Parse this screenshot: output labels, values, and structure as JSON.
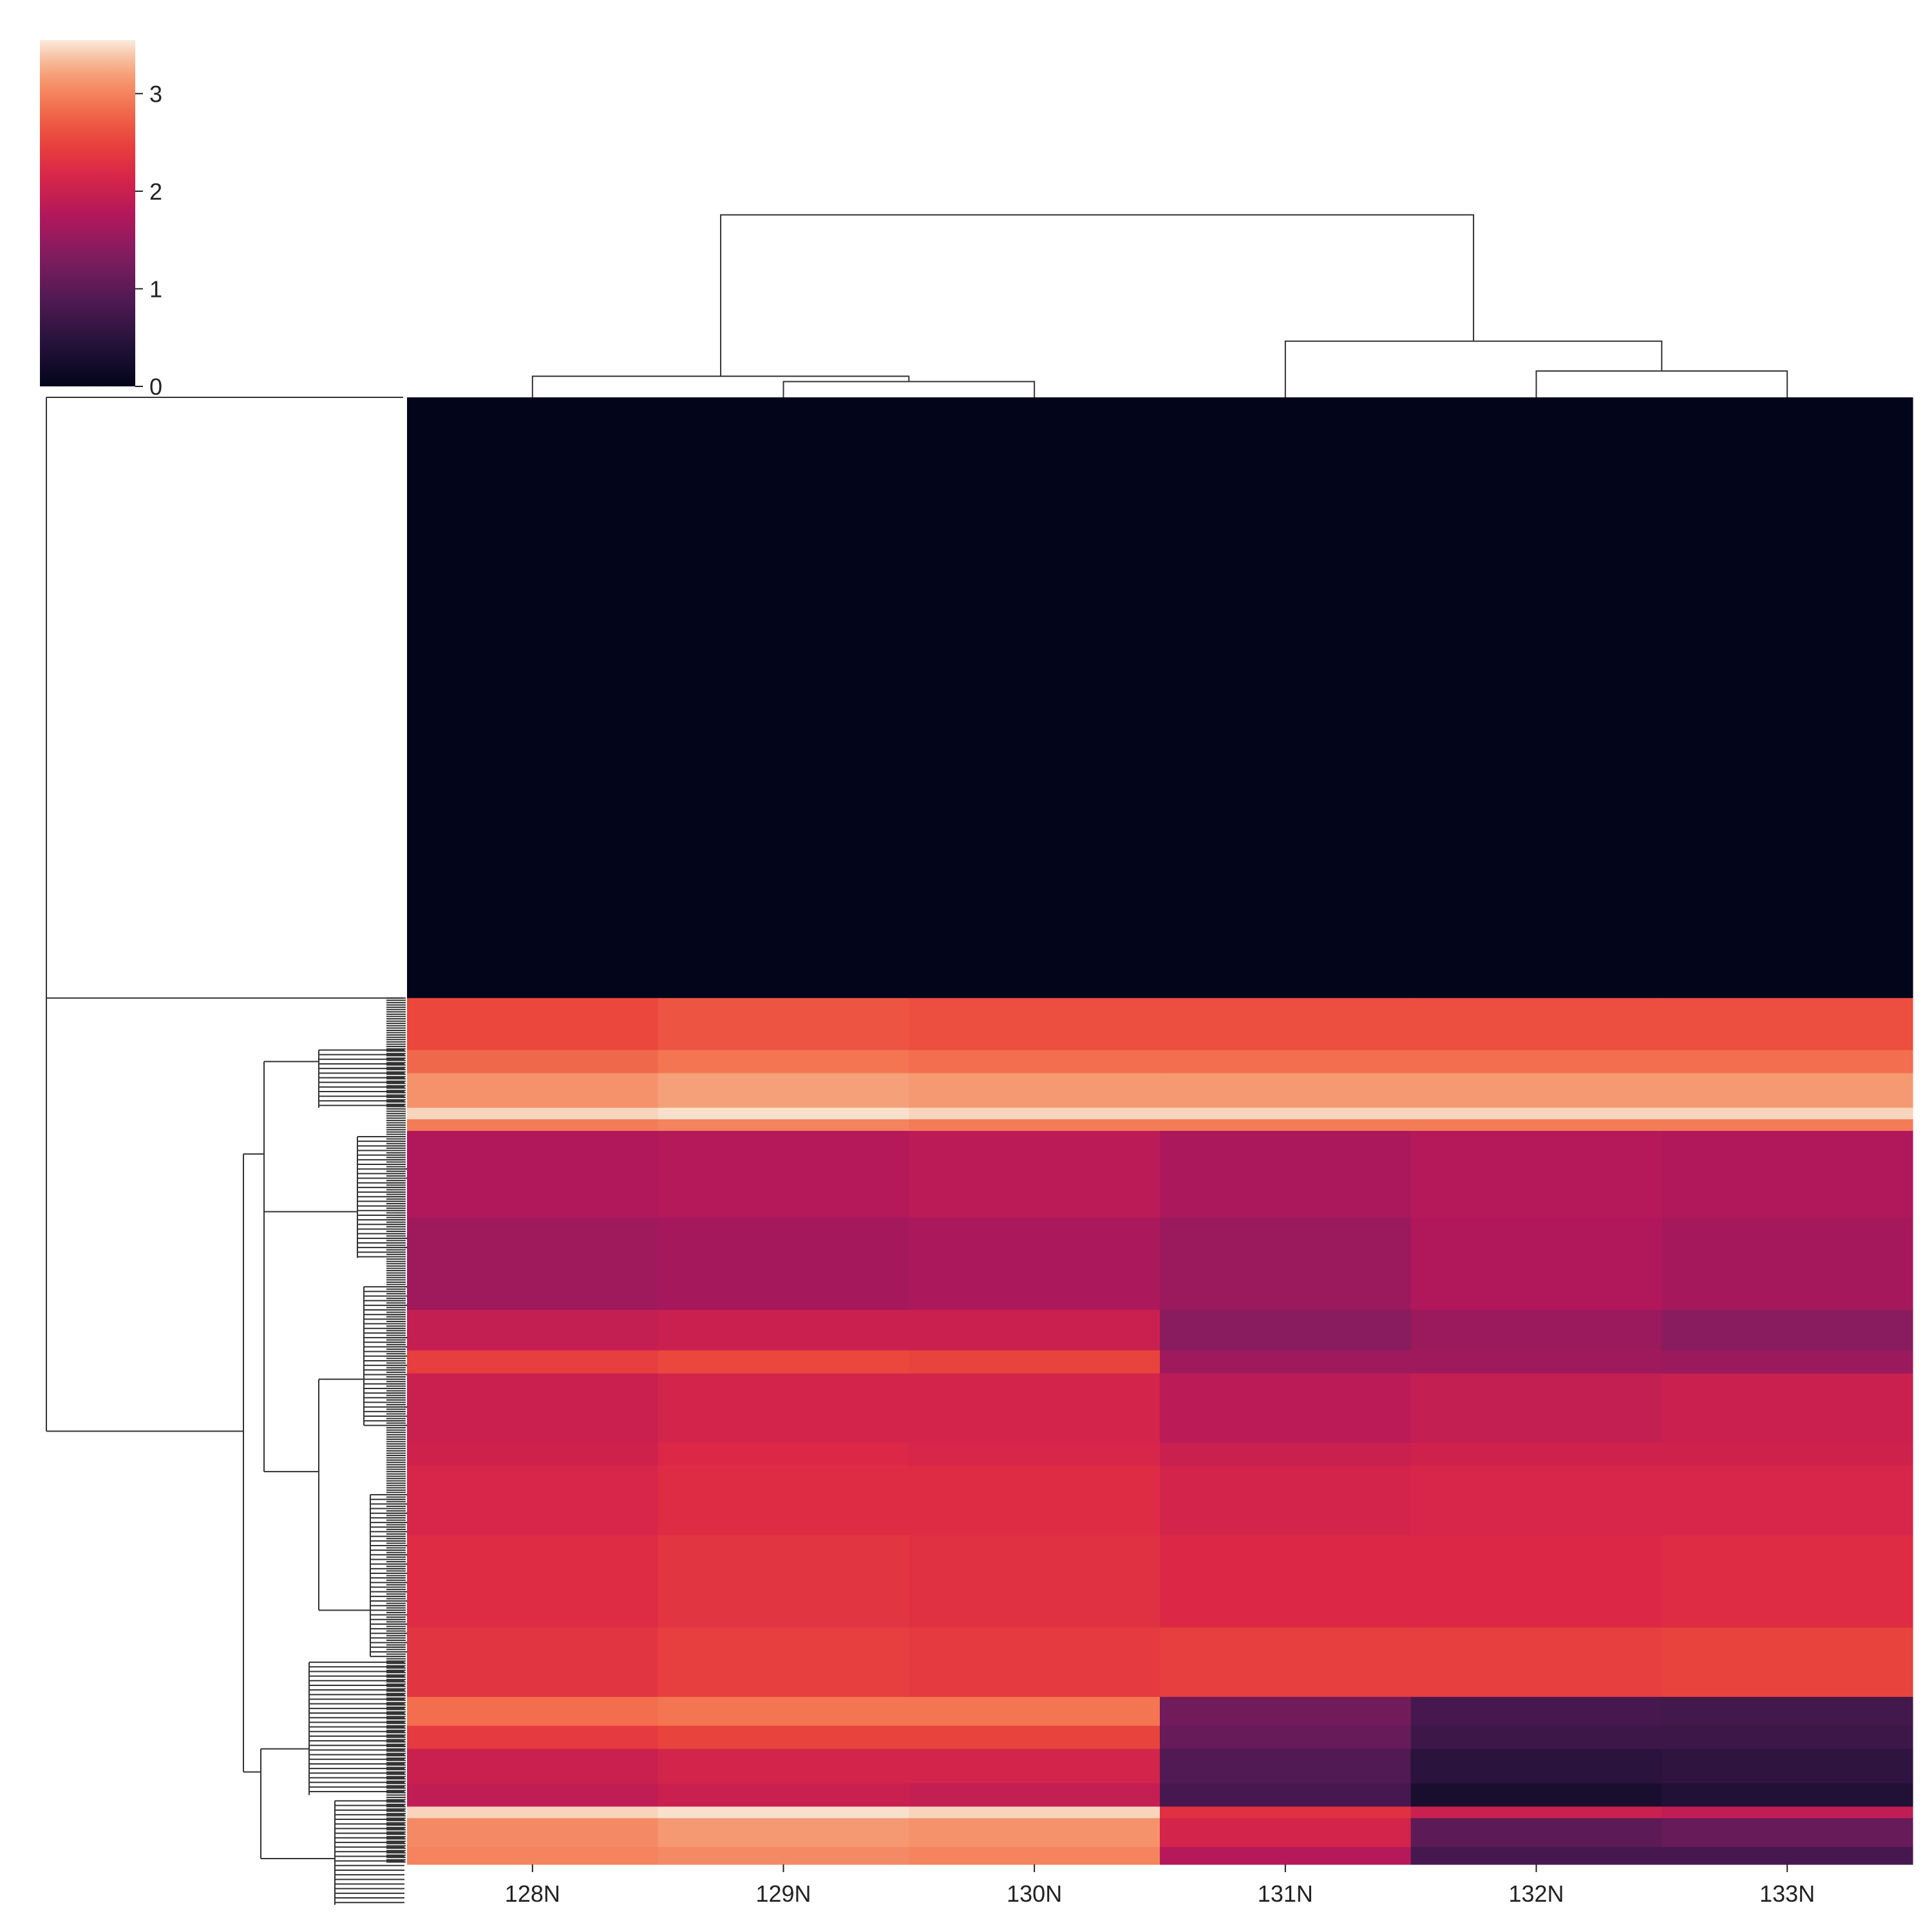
{
  "chart_data": {
    "type": "heatmap",
    "title": "",
    "xlabel": "",
    "ylabel": "",
    "columns": [
      "128N",
      "129N",
      "130N",
      "131N",
      "132N",
      "133N"
    ],
    "colorbar": {
      "min": 0,
      "max": 3.55,
      "ticks": [
        "0",
        "1",
        "2",
        "3"
      ]
    },
    "row_blocks": [
      {
        "rows": 520,
        "values": [
          0.0,
          0.0,
          0.0,
          0.0,
          0.0,
          0.0
        ]
      },
      {
        "rows": 45,
        "values": [
          2.55,
          2.65,
          2.6,
          2.6,
          2.6,
          2.6
        ]
      },
      {
        "rows": 20,
        "values": [
          2.8,
          2.9,
          2.85,
          2.85,
          2.85,
          2.85
        ]
      },
      {
        "rows": 30,
        "values": [
          3.1,
          3.2,
          3.15,
          3.15,
          3.15,
          3.15
        ]
      },
      {
        "rows": 10,
        "values": [
          3.45,
          3.5,
          3.45,
          3.45,
          3.45,
          3.45
        ]
      },
      {
        "rows": 10,
        "values": [
          2.95,
          3.0,
          2.95,
          2.95,
          2.95,
          2.95
        ]
      },
      {
        "rows": 75,
        "values": [
          1.75,
          1.8,
          1.85,
          1.7,
          1.8,
          1.75
        ]
      },
      {
        "rows": 80,
        "values": [
          1.6,
          1.65,
          1.7,
          1.55,
          1.75,
          1.65
        ]
      },
      {
        "rows": 35,
        "values": [
          1.95,
          2.0,
          2.0,
          1.4,
          1.55,
          1.4
        ]
      },
      {
        "rows": 20,
        "values": [
          2.45,
          2.55,
          2.5,
          1.6,
          1.6,
          1.55
        ]
      },
      {
        "rows": 60,
        "values": [
          2.0,
          2.1,
          2.1,
          1.85,
          1.95,
          2.0
        ]
      },
      {
        "rows": 20,
        "values": [
          2.05,
          2.2,
          2.15,
          2.0,
          2.05,
          2.05
        ]
      },
      {
        "rows": 60,
        "values": [
          2.15,
          2.25,
          2.25,
          2.1,
          2.15,
          2.15
        ]
      },
      {
        "rows": 80,
        "values": [
          2.25,
          2.35,
          2.3,
          2.2,
          2.2,
          2.25
        ]
      },
      {
        "rows": 60,
        "values": [
          2.35,
          2.45,
          2.4,
          2.45,
          2.45,
          2.5
        ]
      },
      {
        "rows": 25,
        "values": [
          2.85,
          2.9,
          2.9,
          1.2,
          0.8,
          0.75
        ]
      },
      {
        "rows": 20,
        "values": [
          2.4,
          2.5,
          2.5,
          1.1,
          0.7,
          0.7
        ]
      },
      {
        "rows": 30,
        "values": [
          2.0,
          2.1,
          2.1,
          0.9,
          0.5,
          0.55
        ]
      },
      {
        "rows": 20,
        "values": [
          1.9,
          2.0,
          1.95,
          0.8,
          0.3,
          0.4
        ]
      },
      {
        "rows": 10,
        "values": [
          3.45,
          3.5,
          3.45,
          2.3,
          2.0,
          1.9
        ]
      },
      {
        "rows": 25,
        "values": [
          3.05,
          3.15,
          3.1,
          2.1,
          1.0,
          1.1
        ]
      },
      {
        "rows": 15,
        "values": [
          3.0,
          3.05,
          3.0,
          1.8,
          0.8,
          0.8
        ]
      }
    ]
  }
}
